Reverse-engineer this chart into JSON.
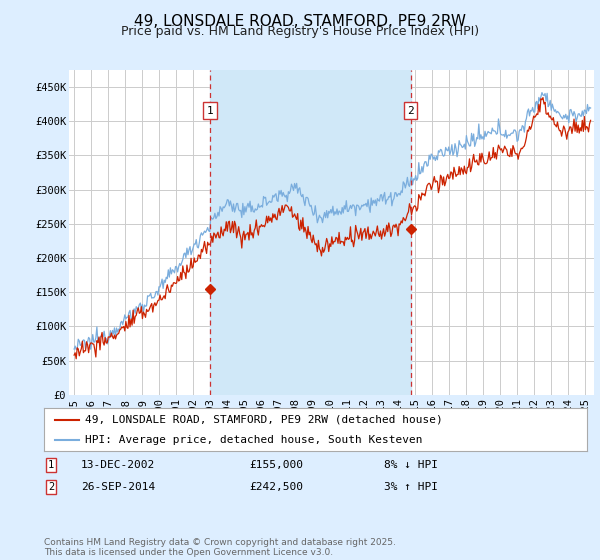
{
  "title": "49, LONSDALE ROAD, STAMFORD, PE9 2RW",
  "subtitle": "Price paid vs. HM Land Registry's House Price Index (HPI)",
  "ylim": [
    0,
    475000
  ],
  "yticks": [
    0,
    50000,
    100000,
    150000,
    200000,
    250000,
    300000,
    350000,
    400000,
    450000
  ],
  "ytick_labels": [
    "£0",
    "£50K",
    "£100K",
    "£150K",
    "£200K",
    "£250K",
    "£300K",
    "£350K",
    "£400K",
    "£450K"
  ],
  "xlim_start": 1994.7,
  "xlim_end": 2025.5,
  "xtick_years": [
    1995,
    1996,
    1997,
    1998,
    1999,
    2000,
    2001,
    2002,
    2003,
    2004,
    2005,
    2006,
    2007,
    2008,
    2009,
    2010,
    2011,
    2012,
    2013,
    2014,
    2015,
    2016,
    2017,
    2018,
    2019,
    2020,
    2021,
    2022,
    2023,
    2024,
    2025
  ],
  "hpi_color": "#7aaddd",
  "price_color": "#cc2200",
  "vline_color": "#cc3333",
  "background_color": "#ddeeff",
  "plot_bg_color": "#ffffff",
  "shade_color": "#d0e8f8",
  "grid_color": "#cccccc",
  "sale1_x": 2002.96,
  "sale1_y": 155000,
  "sale2_x": 2014.74,
  "sale2_y": 242500,
  "legend_label_price": "49, LONSDALE ROAD, STAMFORD, PE9 2RW (detached house)",
  "legend_label_hpi": "HPI: Average price, detached house, South Kesteven",
  "info1_date": "13-DEC-2002",
  "info1_price": "£155,000",
  "info1_change": "8% ↓ HPI",
  "info2_date": "26-SEP-2014",
  "info2_price": "£242,500",
  "info2_change": "3% ↑ HPI",
  "footer": "Contains HM Land Registry data © Crown copyright and database right 2025.\nThis data is licensed under the Open Government Licence v3.0.",
  "title_fontsize": 11,
  "subtitle_fontsize": 9,
  "tick_fontsize": 7.5,
  "legend_fontsize": 8,
  "footer_fontsize": 6.5
}
